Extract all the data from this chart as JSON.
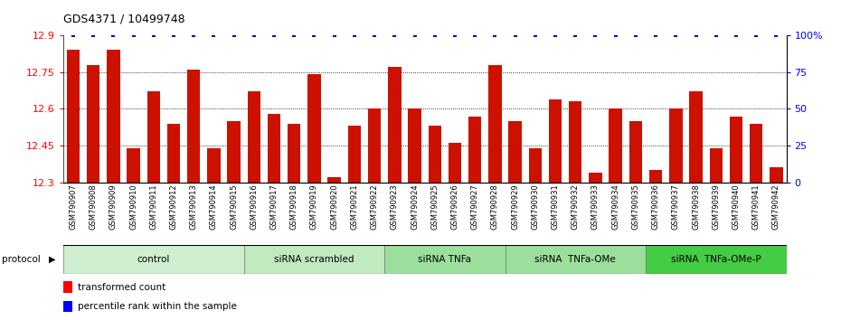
{
  "title": "GDS4371 / 10499748",
  "samples": [
    "GSM790907",
    "GSM790908",
    "GSM790909",
    "GSM790910",
    "GSM790911",
    "GSM790912",
    "GSM790913",
    "GSM790914",
    "GSM790915",
    "GSM790916",
    "GSM790917",
    "GSM790918",
    "GSM790919",
    "GSM790920",
    "GSM790921",
    "GSM790922",
    "GSM790923",
    "GSM790924",
    "GSM790925",
    "GSM790926",
    "GSM790927",
    "GSM790928",
    "GSM790929",
    "GSM790930",
    "GSM790931",
    "GSM790932",
    "GSM790933",
    "GSM790934",
    "GSM790935",
    "GSM790936",
    "GSM790937",
    "GSM790938",
    "GSM790939",
    "GSM790940",
    "GSM790941",
    "GSM790942"
  ],
  "values": [
    12.84,
    12.78,
    12.84,
    12.44,
    12.67,
    12.54,
    12.76,
    12.44,
    12.55,
    12.67,
    12.58,
    12.54,
    12.74,
    12.32,
    12.53,
    12.6,
    12.77,
    12.6,
    12.53,
    12.46,
    12.57,
    12.78,
    12.55,
    12.44,
    12.64,
    12.63,
    12.34,
    12.6,
    12.55,
    12.35,
    12.6,
    12.67,
    12.44,
    12.57,
    12.54,
    12.36
  ],
  "groups": [
    {
      "label": "control",
      "start": 0,
      "end": 9,
      "color": "#d0efd0"
    },
    {
      "label": "siRNA scrambled",
      "start": 9,
      "end": 16,
      "color": "#c0eac0"
    },
    {
      "label": "siRNA TNFa",
      "start": 16,
      "end": 22,
      "color": "#9cdf9c"
    },
    {
      "label": "siRNA  TNFa-OMe",
      "start": 22,
      "end": 29,
      "color": "#9cdf9c"
    },
    {
      "label": "siRNA  TNFa-OMe-P",
      "start": 29,
      "end": 36,
      "color": "#44cc44"
    }
  ],
  "bar_color": "#cc1100",
  "percentile_color": "#0000cc",
  "ylim": [
    12.3,
    12.9
  ],
  "yticks": [
    12.3,
    12.45,
    12.6,
    12.75,
    12.9
  ],
  "y2ticks": [
    0,
    25,
    50,
    75,
    100
  ],
  "background_color": "#ffffff"
}
